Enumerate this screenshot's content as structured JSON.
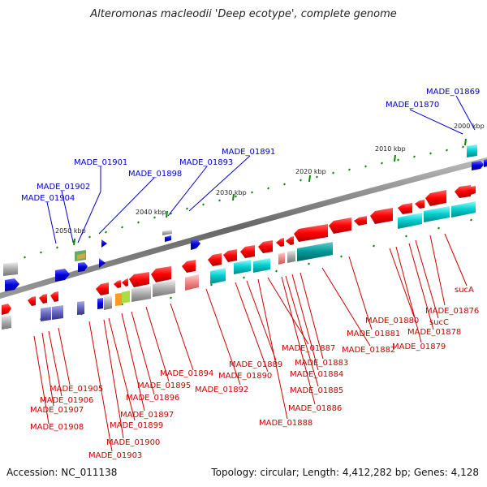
{
  "title": "Alteromonas macleodii 'Deep ecotype', complete genome",
  "accession": "Accession: NC_011138",
  "topology": "Topology: circular; Length: 4,412,282 bp; Genes: 4,128",
  "colors": {
    "backbone": "#888888",
    "gene_red": "#ff0000",
    "gene_blue": "#0000dd",
    "gene_cyan": "#00cccc",
    "gene_gray": "#aaaaaa",
    "label_red": "#cc0000",
    "label_blue": "#0000cc",
    "tick_green": "#008800"
  },
  "position_ticks": [
    "2000 kbp",
    "2010 kbp",
    "2020 kbp",
    "2030 kbp",
    "2040 kbp",
    "2050 kbp"
  ],
  "top_labels": [
    "MADE_01869",
    "MADE_01870",
    "MADE_01891",
    "MADE_01893",
    "MADE_01898",
    "MADE_01901",
    "MADE_01902",
    "MADE_01904"
  ],
  "bottom_labels": [
    "sucA",
    "MADE_01876",
    "sucC",
    "MADE_01878",
    "MADE_01879",
    "MADE_01880",
    "MADE_01881",
    "MADE_01882",
    "MADE_01883",
    "MADE_01884",
    "MADE_01885",
    "MADE_01886",
    "MADE_01887",
    "MADE_01888",
    "MADE_01889",
    "MADE_01890",
    "MADE_01892",
    "MADE_01894",
    "MADE_01895",
    "MADE_01896",
    "MADE_01897",
    "MADE_01899",
    "MADE_01900",
    "MADE_01903",
    "MADE_01905",
    "MADE_01906",
    "MADE_01907",
    "MADE_01908"
  ]
}
